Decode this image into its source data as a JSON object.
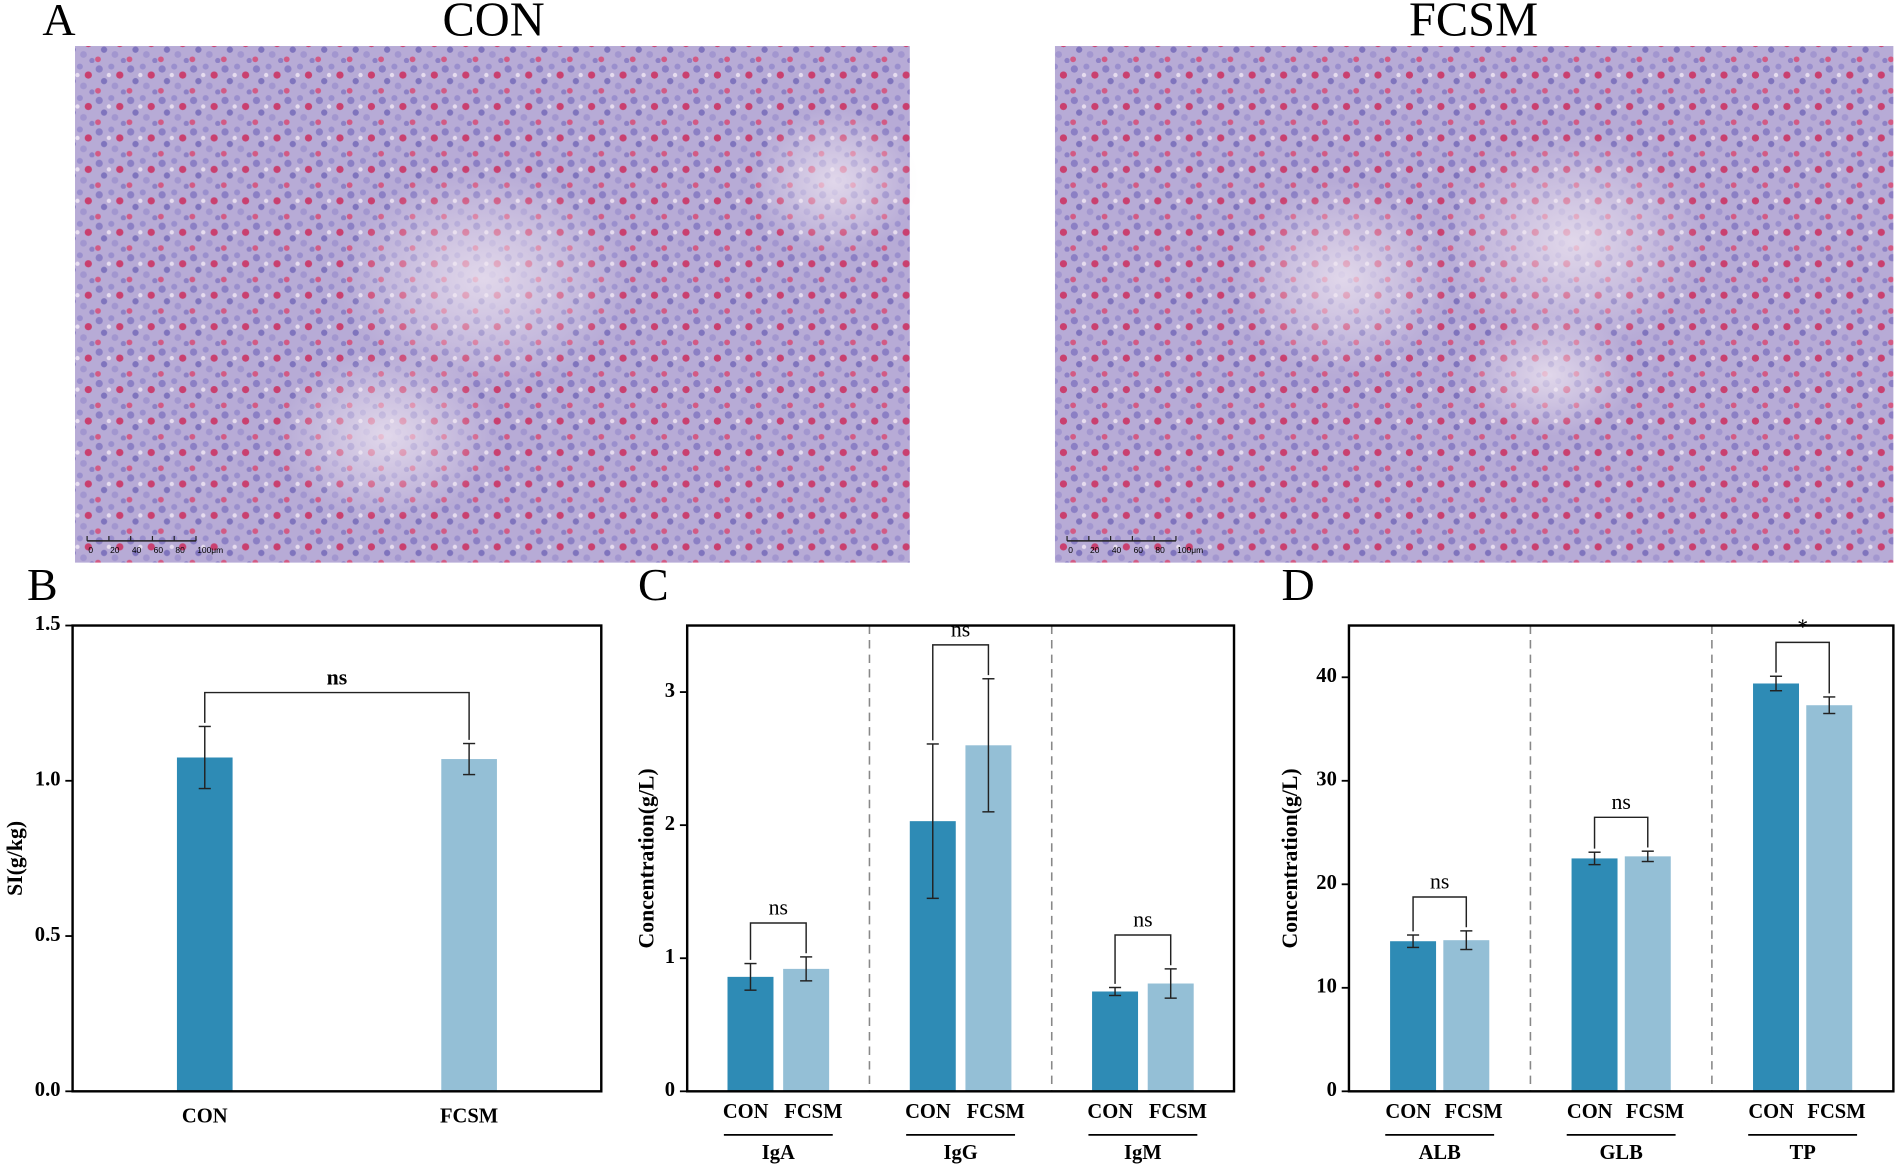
{
  "figure": {
    "panel_label": "A",
    "images": [
      {
        "title": "CON",
        "scale_labels": [
          "0",
          "20",
          "40",
          "60",
          "80",
          "100μm"
        ]
      },
      {
        "title": "FCSM",
        "scale_labels": [
          "0",
          "20",
          "40",
          "60",
          "80",
          "100μm"
        ]
      }
    ]
  },
  "chart_data": [
    {
      "type": "bar",
      "panel": "B",
      "ylabel": "SI(g/kg)",
      "categories": [
        "CON",
        "FCSM"
      ],
      "values": [
        1.075,
        1.07
      ],
      "errors": [
        0.1,
        0.05
      ],
      "colors": [
        "#2e8bb5",
        "#94bfd6"
      ],
      "ylim": [
        0,
        1.5
      ],
      "yticks": [
        {
          "value": 0,
          "label": "0.0"
        },
        {
          "value": 0.5,
          "label": "0.5"
        },
        {
          "value": 1,
          "label": "1.0"
        },
        {
          "value": 1.5,
          "label": "1.5"
        }
      ],
      "annotations": [
        "ns"
      ]
    },
    {
      "type": "grouped_bar",
      "panel": "C",
      "ylabel": "Concentration(g/L)",
      "groups": [
        "IgA",
        "IgG",
        "IgM"
      ],
      "series": [
        {
          "name": "CON",
          "color": "#2e8bb5",
          "values": [
            0.86,
            2.03,
            0.75
          ],
          "errors": [
            0.1,
            0.58,
            0.03
          ]
        },
        {
          "name": "FCSM",
          "color": "#94bfd6",
          "values": [
            0.92,
            2.6,
            0.81
          ],
          "errors": [
            0.09,
            0.5,
            0.11
          ]
        }
      ],
      "ylim": [
        0,
        3.5
      ],
      "yticks": [
        0,
        1,
        2,
        3
      ],
      "annotations": [
        "ns",
        "ns",
        "ns"
      ]
    },
    {
      "type": "grouped_bar",
      "panel": "D",
      "ylabel": "Concentration(g/L)",
      "groups": [
        "ALB",
        "GLB",
        "TP"
      ],
      "series": [
        {
          "name": "CON",
          "color": "#2e8bb5",
          "values": [
            14.5,
            22.5,
            39.4
          ],
          "errors": [
            0.6,
            0.6,
            0.7
          ]
        },
        {
          "name": "FCSM",
          "color": "#94bfd6",
          "values": [
            14.6,
            22.7,
            37.3
          ],
          "errors": [
            0.9,
            0.5,
            0.8
          ]
        }
      ],
      "ylim": [
        0,
        45
      ],
      "yticks": [
        0,
        10,
        20,
        30,
        40
      ],
      "annotations": [
        "ns",
        "ns",
        "*"
      ]
    }
  ]
}
